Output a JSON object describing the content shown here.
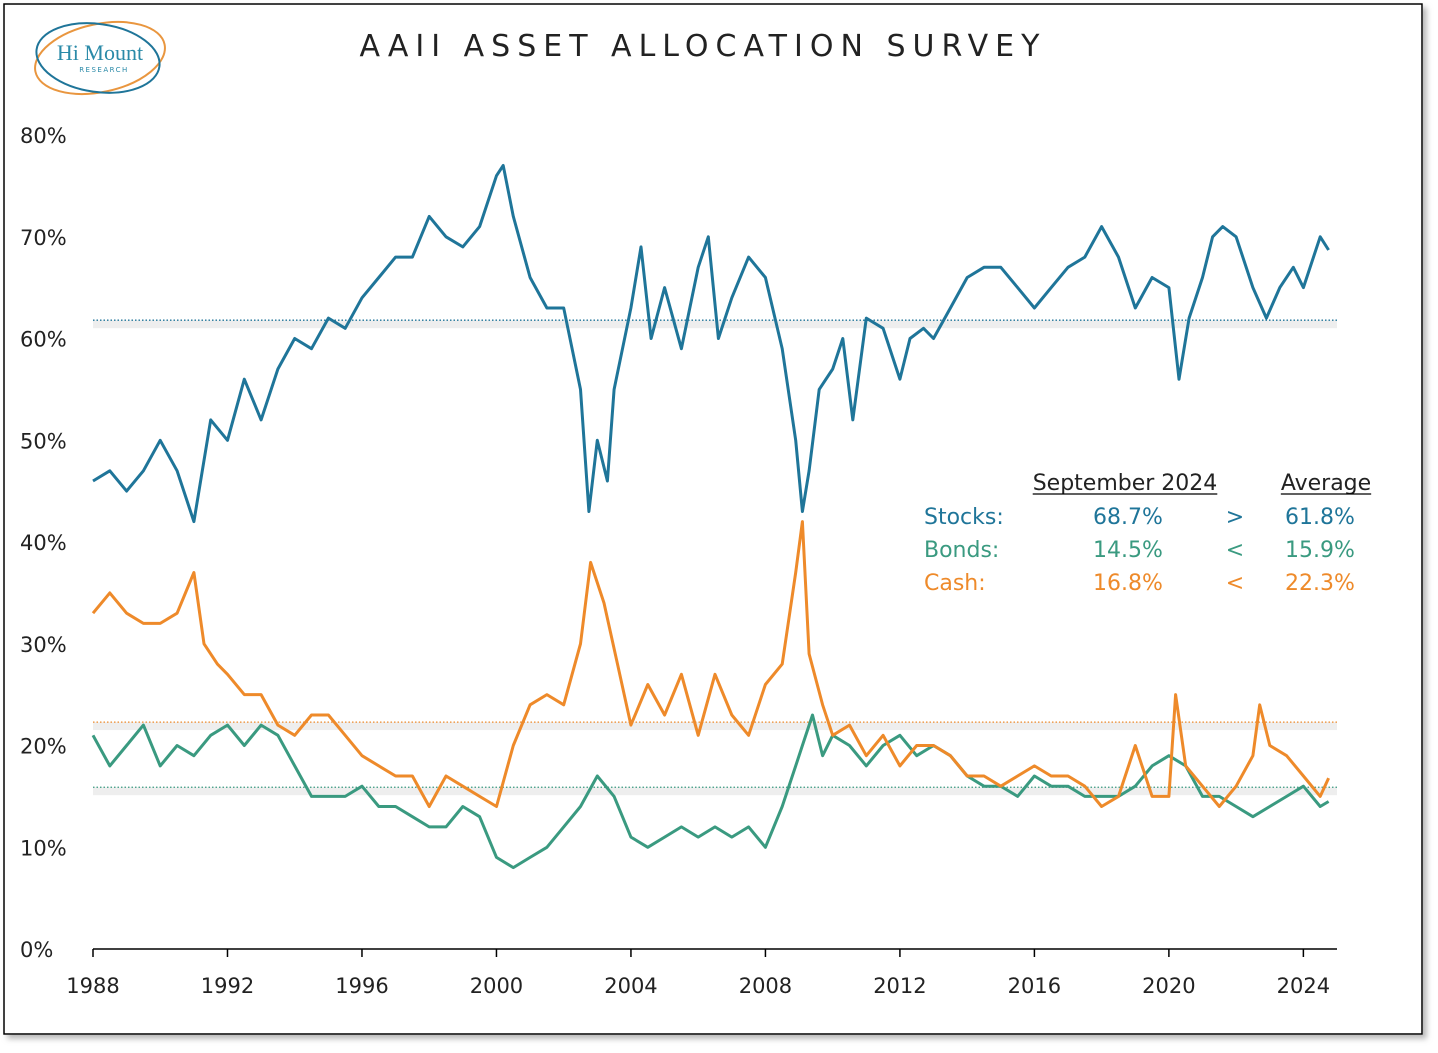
{
  "logo": {
    "name": "Hi Mount",
    "sub": "RESEARCH"
  },
  "chart_data": {
    "type": "line",
    "title": "AAII ASSET ALLOCATION SURVEY",
    "xlim": [
      1988,
      2025
    ],
    "xticks": [
      1988,
      1992,
      1996,
      2000,
      2004,
      2008,
      2012,
      2016,
      2020,
      2024
    ],
    "ylim": [
      0,
      80
    ],
    "yticks": [
      {
        "value": 0,
        "label": "0%"
      },
      {
        "value": 10,
        "label": "10%"
      },
      {
        "value": 20,
        "label": "20%"
      },
      {
        "value": 30,
        "label": "30%"
      },
      {
        "value": 40,
        "label": "40%"
      },
      {
        "value": 50,
        "label": "50%"
      },
      {
        "value": 60,
        "label": "60%"
      },
      {
        "value": 70,
        "label": "70%"
      },
      {
        "value": 80,
        "label": "80%"
      }
    ],
    "table_header": [
      "September 2024",
      "Average"
    ],
    "series": [
      {
        "name": "Stocks:",
        "color": "#1f7599",
        "latest_label": "68.7%",
        "compare": ">",
        "average": 61.8,
        "average_label": "61.8%",
        "x": [
          1988,
          1988.5,
          1989,
          1989.5,
          1990,
          1990.5,
          1991,
          1991.5,
          1992,
          1992.5,
          1993,
          1993.5,
          1994,
          1994.5,
          1995,
          1995.5,
          1996,
          1996.5,
          1997,
          1997.5,
          1998,
          1998.5,
          1999,
          1999.5,
          2000,
          2000.2,
          2000.5,
          2001,
          2001.5,
          2002,
          2002.5,
          2002.75,
          2003,
          2003.3,
          2003.5,
          2004,
          2004.3,
          2004.6,
          2005,
          2005.5,
          2006,
          2006.3,
          2006.6,
          2007,
          2007.5,
          2008,
          2008.5,
          2008.9,
          2009.1,
          2009.3,
          2009.6,
          2010,
          2010.3,
          2010.6,
          2011,
          2011.5,
          2012,
          2012.3,
          2012.7,
          2013,
          2013.5,
          2014,
          2014.5,
          2015,
          2015.5,
          2016,
          2016.5,
          2017,
          2017.5,
          2018,
          2018.5,
          2019,
          2019.5,
          2020,
          2020.3,
          2020.6,
          2021,
          2021.3,
          2021.6,
          2022,
          2022.5,
          2022.9,
          2023.3,
          2023.7,
          2024,
          2024.5,
          2024.75
        ],
        "values": [
          46,
          47,
          45,
          47,
          50,
          47,
          42,
          52,
          50,
          56,
          52,
          57,
          60,
          59,
          62,
          61,
          64,
          66,
          68,
          68,
          72,
          70,
          69,
          71,
          76,
          77,
          72,
          66,
          63,
          63,
          55,
          43,
          50,
          46,
          55,
          63,
          69,
          60,
          65,
          59,
          67,
          70,
          60,
          64,
          68,
          66,
          59,
          50,
          43,
          47,
          55,
          57,
          60,
          52,
          62,
          61,
          56,
          60,
          61,
          60,
          63,
          66,
          67,
          67,
          65,
          63,
          65,
          67,
          68,
          71,
          68,
          63,
          66,
          65,
          56,
          62,
          66,
          70,
          71,
          70,
          65,
          62,
          65,
          67,
          65,
          70,
          68.7
        ]
      },
      {
        "name": "Bonds:",
        "color": "#3a9a80",
        "latest_label": "14.5%",
        "compare": "<",
        "average": 15.9,
        "average_label": "15.9%",
        "x": [
          1988,
          1988.5,
          1989,
          1989.5,
          1990,
          1990.5,
          1991,
          1991.5,
          1992,
          1992.5,
          1993,
          1993.5,
          1994,
          1994.5,
          1995,
          1995.5,
          1996,
          1996.5,
          1997,
          1997.5,
          1998,
          1998.5,
          1999,
          1999.5,
          2000,
          2000.5,
          2001,
          2001.5,
          2002,
          2002.5,
          2003,
          2003.5,
          2004,
          2004.5,
          2005,
          2005.5,
          2006,
          2006.5,
          2007,
          2007.5,
          2008,
          2008.5,
          2008.9,
          2009.1,
          2009.4,
          2009.7,
          2010,
          2010.5,
          2011,
          2011.5,
          2012,
          2012.5,
          2013,
          2013.5,
          2014,
          2014.5,
          2015,
          2015.5,
          2016,
          2016.5,
          2017,
          2017.5,
          2018,
          2018.5,
          2019,
          2019.5,
          2020,
          2020.5,
          2021,
          2021.5,
          2022,
          2022.5,
          2023,
          2023.5,
          2024,
          2024.5,
          2024.75
        ],
        "values": [
          21,
          18,
          20,
          22,
          18,
          20,
          19,
          21,
          22,
          20,
          22,
          21,
          18,
          15,
          15,
          15,
          16,
          14,
          14,
          13,
          12,
          12,
          14,
          13,
          9,
          8,
          9,
          10,
          12,
          14,
          17,
          15,
          11,
          10,
          11,
          12,
          11,
          12,
          11,
          12,
          10,
          14,
          18,
          20,
          23,
          19,
          21,
          20,
          18,
          20,
          21,
          19,
          20,
          19,
          17,
          16,
          16,
          15,
          17,
          16,
          16,
          15,
          15,
          15,
          16,
          18,
          19,
          18,
          15,
          15,
          14,
          13,
          14,
          15,
          16,
          14,
          14.5
        ]
      },
      {
        "name": "Cash:",
        "color": "#ee8a2a",
        "latest_label": "16.8%",
        "compare": "<",
        "average": 22.3,
        "average_label": "22.3%",
        "x": [
          1988,
          1988.5,
          1989,
          1989.5,
          1990,
          1990.5,
          1991,
          1991.3,
          1991.7,
          1992,
          1992.5,
          1993,
          1993.5,
          1994,
          1994.5,
          1995,
          1995.5,
          1996,
          1996.5,
          1997,
          1997.5,
          1998,
          1998.5,
          1999,
          1999.5,
          2000,
          2000.5,
          2001,
          2001.5,
          2002,
          2002.5,
          2002.8,
          2003.2,
          2003.6,
          2004,
          2004.5,
          2005,
          2005.5,
          2006,
          2006.5,
          2007,
          2007.5,
          2008,
          2008.5,
          2008.9,
          2009.1,
          2009.3,
          2009.7,
          2010,
          2010.5,
          2011,
          2011.5,
          2012,
          2012.5,
          2013,
          2013.5,
          2014,
          2014.5,
          2015,
          2015.5,
          2016,
          2016.5,
          2017,
          2017.5,
          2018,
          2018.5,
          2019,
          2019.5,
          2020,
          2020.2,
          2020.5,
          2021,
          2021.5,
          2022,
          2022.5,
          2022.7,
          2023,
          2023.5,
          2024,
          2024.5,
          2024.75
        ],
        "values": [
          33,
          35,
          33,
          32,
          32,
          33,
          37,
          30,
          28,
          27,
          25,
          25,
          22,
          21,
          23,
          23,
          21,
          19,
          18,
          17,
          17,
          14,
          17,
          16,
          15,
          14,
          20,
          24,
          25,
          24,
          30,
          38,
          34,
          28,
          22,
          26,
          23,
          27,
          21,
          27,
          23,
          21,
          26,
          28,
          37,
          42,
          29,
          24,
          21,
          22,
          19,
          21,
          18,
          20,
          20,
          19,
          17,
          17,
          16,
          17,
          18,
          17,
          17,
          16,
          14,
          15,
          20,
          15,
          15,
          25,
          18,
          16,
          14,
          16,
          19,
          24,
          20,
          19,
          17,
          15,
          16.8
        ]
      }
    ]
  }
}
